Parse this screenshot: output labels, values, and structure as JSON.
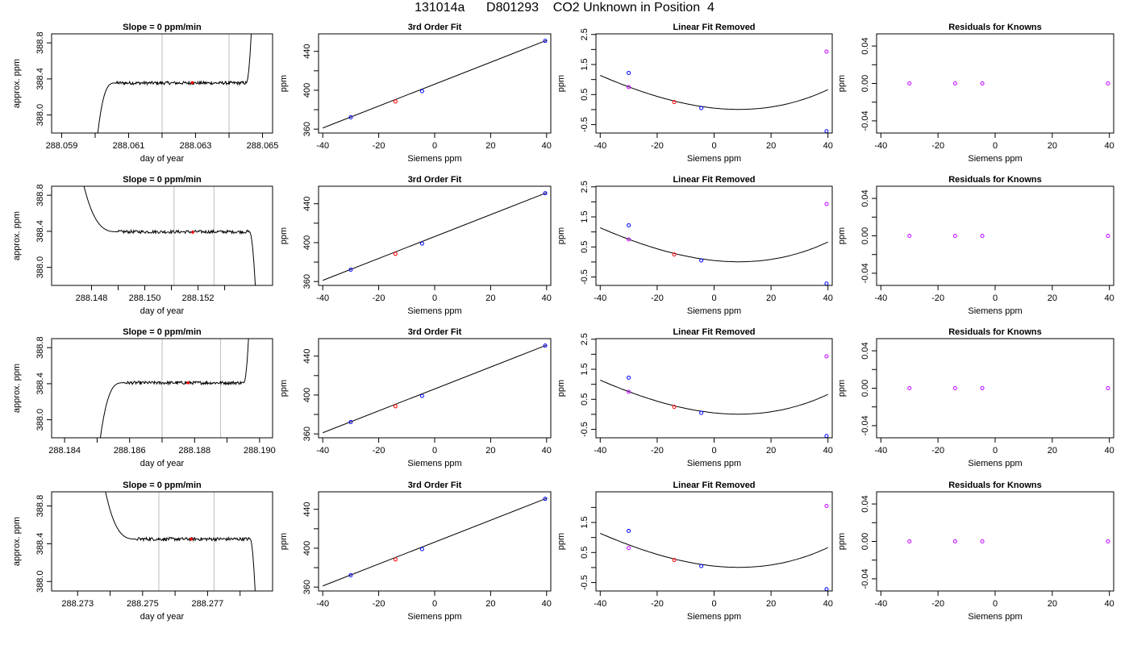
{
  "title": "131014a      D801293    CO2 Unknown in Position  4",
  "colors": {
    "trace": "#000000",
    "window": "#bebebe",
    "unknown_marker": "#ff0000",
    "known_marker": "#0000ff",
    "residual_marker": "#c000ff"
  },
  "chart_data": [
    {
      "row": 1,
      "type": "line",
      "title": "Slope =  0  ppm/min",
      "xlabel": "day of year",
      "ylabel": "approx. ppm",
      "xlim": [
        288.0587,
        288.0653
      ],
      "ylim": [
        387.8,
        388.9
      ],
      "xticks": [
        288.059,
        288.061,
        288.063,
        288.065
      ],
      "xtick_labels": [
        "288.059",
        "288.061",
        "288.063",
        "288.065"
      ],
      "xminor": [
        288.06,
        288.062,
        288.064
      ],
      "yticks": [
        388.0,
        388.4,
        388.8
      ],
      "ytick_labels": [
        "388.0",
        "388.4",
        "388.8"
      ],
      "vlines": [
        288.062,
        288.064
      ],
      "trace": {
        "start": 288.06,
        "rise_end": 288.0606,
        "plateau": 388.355,
        "end": 288.0647,
        "shape": "rise"
      },
      "mean_point": {
        "x": 288.0629,
        "y": 388.36
      }
    },
    {
      "row": 1,
      "type": "scatter",
      "title": "3rd Order Fit",
      "xlabel": "Siemens ppm",
      "ylabel": "ppm",
      "xlim": [
        -41.5,
        41.5
      ],
      "ylim": [
        356,
        458
      ],
      "xticks": [
        -40,
        -20,
        0,
        20,
        40
      ],
      "xtick_labels": [
        "-40",
        "-20",
        "0",
        "20",
        "40"
      ],
      "yticks": [
        360,
        400,
        440
      ],
      "ytick_labels": [
        "360",
        "400",
        "440"
      ],
      "yminor": [
        380,
        420
      ],
      "line": {
        "x": [
          -40,
          40
        ],
        "y": [
          361.2,
          451.3
        ]
      },
      "points": [
        {
          "x": -30,
          "y": 372.2
        },
        {
          "x": -14,
          "y": 388.4,
          "unknown": true
        },
        {
          "x": -4.5,
          "y": 399.0
        },
        {
          "x": 39.5,
          "y": 450.8
        }
      ]
    },
    {
      "row": 1,
      "type": "scatter",
      "title": "Linear Fit Removed",
      "xlabel": "Siemens ppm",
      "ylabel": "ppm",
      "xlim": [
        -41.5,
        41.5
      ],
      "ylim": [
        -0.78,
        2.52
      ],
      "xticks": [
        -40,
        -20,
        0,
        20,
        40
      ],
      "xtick_labels": [
        "-40",
        "-20",
        "0",
        "20",
        "40"
      ],
      "yticks": [
        -0.5,
        0.5,
        1.5,
        2.5
      ],
      "ytick_labels": [
        "-0.5",
        "0.5",
        "1.5",
        "2.5"
      ],
      "yminor": [
        0,
        1.0,
        2.0
      ],
      "curve": {
        "coef": [
          0.05,
          -0.0098,
          0.000532,
          2.44e-06
        ]
      },
      "known_points": [
        {
          "x": -30,
          "y": 1.22
        },
        {
          "x": -4.5,
          "y": 0.05
        },
        {
          "x": 39.5,
          "y": -0.72
        }
      ],
      "unknown_point": {
        "x": -14,
        "y": 0.25
      },
      "residual_points": [
        {
          "x": -30,
          "y": 0.75
        },
        {
          "x": 39.5,
          "y": 1.93
        }
      ]
    },
    {
      "row": 1,
      "type": "scatter",
      "title": "Residuals for Knowns",
      "xlabel": "Siemens ppm",
      "ylabel": "ppm",
      "xlim": [
        -41.5,
        41.5
      ],
      "ylim": [
        -0.053,
        0.053
      ],
      "xticks": [
        -40,
        -20,
        0,
        20,
        40
      ],
      "xtick_labels": [
        "-40",
        "-20",
        "0",
        "20",
        "40"
      ],
      "yticks": [
        -0.04,
        0.0,
        0.04
      ],
      "ytick_labels": [
        "-0.04",
        "0.00",
        "0.04"
      ],
      "yminor": [
        -0.02,
        0.02
      ],
      "points": [
        {
          "x": -30,
          "y": 0
        },
        {
          "x": -14,
          "y": 0
        },
        {
          "x": -4.5,
          "y": 0
        },
        {
          "x": 39.5,
          "y": 0
        }
      ]
    },
    {
      "row": 2,
      "type": "line",
      "title": "Slope =  0  ppm/min",
      "xlabel": "day of year",
      "ylabel": "approx. ppm",
      "xlim": [
        288.1465,
        288.1548
      ],
      "ylim": [
        387.8,
        388.9
      ],
      "xticks": [
        288.148,
        288.15,
        288.152
      ],
      "xtick_labels": [
        "288.148",
        "288.150",
        "288.152"
      ],
      "xminor": [
        288.149,
        288.151,
        288.153
      ],
      "yticks": [
        388.0,
        388.4,
        388.8
      ],
      "ytick_labels": [
        "388.0",
        "388.4",
        "388.8"
      ],
      "vlines": [
        288.1511,
        288.1526
      ],
      "trace": {
        "start": 288.1475,
        "rise_end": 288.149,
        "plateau": 388.395,
        "end": 288.1542,
        "shape": "fall"
      },
      "mean_point": {
        "x": 288.1518,
        "y": 388.39
      }
    },
    {
      "row": 2,
      "type": "scatter",
      "title": "3rd Order Fit",
      "xlabel": "Siemens ppm",
      "ylabel": "ppm",
      "xlim": [
        -41.5,
        41.5
      ],
      "ylim": [
        356,
        458
      ],
      "xticks": [
        -40,
        -20,
        0,
        20,
        40
      ],
      "xtick_labels": [
        "-40",
        "-20",
        "0",
        "20",
        "40"
      ],
      "yticks": [
        360,
        400,
        440
      ],
      "ytick_labels": [
        "360",
        "400",
        "440"
      ],
      "yminor": [
        380,
        420
      ],
      "line": {
        "x": [
          -40,
          40
        ],
        "y": [
          361.2,
          451.3
        ]
      },
      "points": [
        {
          "x": -30,
          "y": 372.2
        },
        {
          "x": -14,
          "y": 388.4,
          "unknown": true
        },
        {
          "x": -4.5,
          "y": 399.0
        },
        {
          "x": 39.5,
          "y": 450.8
        }
      ]
    },
    {
      "row": 2,
      "type": "scatter",
      "title": "Linear Fit Removed",
      "xlabel": "Siemens ppm",
      "ylabel": "ppm",
      "xlim": [
        -41.5,
        41.5
      ],
      "ylim": [
        -0.78,
        2.52
      ],
      "xticks": [
        -40,
        -20,
        0,
        20,
        40
      ],
      "xtick_labels": [
        "-40",
        "-20",
        "0",
        "20",
        "40"
      ],
      "yticks": [
        -0.5,
        0.5,
        1.5,
        2.5
      ],
      "ytick_labels": [
        "-0.5",
        "0.5",
        "1.5",
        "2.5"
      ],
      "yminor": [
        0,
        1.0,
        2.0
      ],
      "curve": {
        "coef": [
          0.05,
          -0.0098,
          0.000532,
          2.44e-06
        ]
      },
      "known_points": [
        {
          "x": -30,
          "y": 1.22
        },
        {
          "x": -4.5,
          "y": 0.05
        },
        {
          "x": 39.5,
          "y": -0.72
        }
      ],
      "unknown_point": {
        "x": -14,
        "y": 0.25
      },
      "residual_points": [
        {
          "x": -30,
          "y": 0.75
        },
        {
          "x": 39.5,
          "y": 1.93
        }
      ]
    },
    {
      "row": 2,
      "type": "scatter",
      "title": "Residuals for Knowns",
      "xlabel": "Siemens ppm",
      "ylabel": "ppm",
      "xlim": [
        -41.5,
        41.5
      ],
      "ylim": [
        -0.053,
        0.053
      ],
      "xticks": [
        -40,
        -20,
        0,
        20,
        40
      ],
      "xtick_labels": [
        "-40",
        "-20",
        "0",
        "20",
        "40"
      ],
      "yticks": [
        -0.04,
        0.0,
        0.04
      ],
      "ytick_labels": [
        "-0.04",
        "0.00",
        "0.04"
      ],
      "yminor": [
        -0.02,
        0.02
      ],
      "points": [
        {
          "x": -30,
          "y": 0
        },
        {
          "x": -14,
          "y": 0
        },
        {
          "x": -4.5,
          "y": 0
        },
        {
          "x": 39.5,
          "y": 0
        }
      ]
    },
    {
      "row": 3,
      "type": "line",
      "title": "Slope =  0  ppm/min",
      "xlabel": "day of year",
      "ylabel": "approx. ppm",
      "xlim": [
        288.1836,
        288.1904
      ],
      "ylim": [
        387.8,
        388.9
      ],
      "xticks": [
        288.184,
        288.186,
        288.188,
        288.19
      ],
      "xtick_labels": [
        "288.184",
        "288.186",
        "288.188",
        "288.190"
      ],
      "xminor": [
        288.185,
        288.187,
        288.189
      ],
      "yticks": [
        388.0,
        388.4,
        388.8
      ],
      "ytick_labels": [
        "388.0",
        "388.4",
        "388.8"
      ],
      "vlines": [
        288.187,
        288.1888
      ],
      "trace": {
        "start": 288.185,
        "rise_end": 288.1858,
        "plateau": 388.41,
        "end": 288.1897,
        "shape": "rise"
      },
      "mean_point": {
        "x": 288.1878,
        "y": 388.41
      }
    },
    {
      "row": 3,
      "type": "scatter",
      "title": "3rd Order Fit",
      "xlabel": "Siemens ppm",
      "ylabel": "ppm",
      "xlim": [
        -41.5,
        41.5
      ],
      "ylim": [
        356,
        458
      ],
      "xticks": [
        -40,
        -20,
        0,
        20,
        40
      ],
      "xtick_labels": [
        "-40",
        "-20",
        "0",
        "20",
        "40"
      ],
      "yticks": [
        360,
        400,
        440
      ],
      "ytick_labels": [
        "360",
        "400",
        "440"
      ],
      "yminor": [
        380,
        420
      ],
      "line": {
        "x": [
          -40,
          40
        ],
        "y": [
          361.2,
          451.3
        ]
      },
      "points": [
        {
          "x": -30,
          "y": 372.2
        },
        {
          "x": -14,
          "y": 388.4,
          "unknown": true
        },
        {
          "x": -4.5,
          "y": 399.0
        },
        {
          "x": 39.5,
          "y": 450.8
        }
      ]
    },
    {
      "row": 3,
      "type": "scatter",
      "title": "Linear Fit Removed",
      "xlabel": "Siemens ppm",
      "ylabel": "ppm",
      "xlim": [
        -41.5,
        41.5
      ],
      "ylim": [
        -0.78,
        2.52
      ],
      "xticks": [
        -40,
        -20,
        0,
        20,
        40
      ],
      "xtick_labels": [
        "-40",
        "-20",
        "0",
        "20",
        "40"
      ],
      "yticks": [
        -0.5,
        0.5,
        1.5,
        2.5
      ],
      "ytick_labels": [
        "-0.5",
        "0.5",
        "1.5",
        "2.5"
      ],
      "yminor": [
        0,
        1.0,
        2.0
      ],
      "curve": {
        "coef": [
          0.05,
          -0.0098,
          0.000532,
          2.44e-06
        ]
      },
      "known_points": [
        {
          "x": -30,
          "y": 1.22
        },
        {
          "x": -4.5,
          "y": 0.05
        },
        {
          "x": 39.5,
          "y": -0.72
        }
      ],
      "unknown_point": {
        "x": -14,
        "y": 0.25
      },
      "residual_points": [
        {
          "x": -30,
          "y": 0.75
        },
        {
          "x": 39.5,
          "y": 1.93
        }
      ]
    },
    {
      "row": 3,
      "type": "scatter",
      "title": "Residuals for Knowns",
      "xlabel": "Siemens ppm",
      "ylabel": "ppm",
      "xlim": [
        -41.5,
        41.5
      ],
      "ylim": [
        -0.053,
        0.053
      ],
      "xticks": [
        -40,
        -20,
        0,
        20,
        40
      ],
      "xtick_labels": [
        "-40",
        "-20",
        "0",
        "20",
        "40"
      ],
      "yticks": [
        -0.04,
        0.0,
        0.04
      ],
      "ytick_labels": [
        "-0.04",
        "0.00",
        "0.04"
      ],
      "yminor": [
        -0.02,
        0.02
      ],
      "points": [
        {
          "x": -30,
          "y": 0
        },
        {
          "x": -14,
          "y": 0
        },
        {
          "x": -4.5,
          "y": 0
        },
        {
          "x": 39.5,
          "y": 0
        }
      ]
    },
    {
      "row": 4,
      "type": "line",
      "title": "Slope =  0  ppm/min",
      "xlabel": "day of year",
      "ylabel": "approx. ppm",
      "xlim": [
        288.2722,
        288.279
      ],
      "ylim": [
        387.9,
        388.95
      ],
      "xticks": [
        288.273,
        288.275,
        288.277
      ],
      "xtick_labels": [
        "288.273",
        "288.275",
        "288.277"
      ],
      "xminor": [
        288.274,
        288.276,
        288.278
      ],
      "yticks": [
        388.0,
        388.4,
        388.8
      ],
      "ytick_labels": [
        "388.0",
        "388.4",
        "388.8"
      ],
      "vlines": [
        288.2755,
        288.2772
      ],
      "trace": {
        "start": 288.2737,
        "rise_end": 288.2748,
        "plateau": 388.45,
        "end": 288.2785,
        "shape": "fall"
      },
      "mean_point": {
        "x": 288.2765,
        "y": 388.45
      }
    },
    {
      "row": 4,
      "type": "scatter",
      "title": "3rd Order Fit",
      "xlabel": "Siemens ppm",
      "ylabel": "ppm",
      "xlim": [
        -41.5,
        41.5
      ],
      "ylim": [
        356,
        458
      ],
      "xticks": [
        -40,
        -20,
        0,
        20,
        40
      ],
      "xtick_labels": [
        "-40",
        "-20",
        "0",
        "20",
        "40"
      ],
      "yticks": [
        360,
        400,
        440
      ],
      "ytick_labels": [
        "360",
        "400",
        "440"
      ],
      "yminor": [
        380,
        420
      ],
      "line": {
        "x": [
          -40,
          40
        ],
        "y": [
          361.2,
          451.3
        ]
      },
      "points": [
        {
          "x": -30,
          "y": 372.2
        },
        {
          "x": -14,
          "y": 388.4,
          "unknown": true
        },
        {
          "x": -4.5,
          "y": 399.0
        },
        {
          "x": 39.5,
          "y": 450.8
        }
      ]
    },
    {
      "row": 4,
      "type": "scatter",
      "title": "Linear Fit Removed",
      "xlabel": "Siemens ppm",
      "ylabel": "ppm",
      "xlim": [
        -41.5,
        41.5
      ],
      "ylim": [
        -0.78,
        2.52
      ],
      "xticks": [
        -40,
        -20,
        0,
        20,
        40
      ],
      "xtick_labels": [
        "-40",
        "-20",
        "0",
        "20",
        "40"
      ],
      "yticks": [
        -0.5,
        0.5,
        1.5
      ],
      "ytick_labels": [
        "-0.5",
        "0.5",
        "1.5"
      ],
      "yminor": [
        0,
        1.0,
        2.0
      ],
      "curve": {
        "coef": [
          0.05,
          -0.0098,
          0.000532,
          2.44e-06
        ]
      },
      "known_points": [
        {
          "x": -30,
          "y": 1.22
        },
        {
          "x": -4.5,
          "y": 0.05
        },
        {
          "x": 39.5,
          "y": -0.72
        }
      ],
      "unknown_point": {
        "x": -14,
        "y": 0.25
      },
      "residual_points": [
        {
          "x": -30,
          "y": 0.65
        },
        {
          "x": 39.5,
          "y": 2.05
        }
      ]
    },
    {
      "row": 4,
      "type": "scatter",
      "title": "Residuals for Knowns",
      "xlabel": "Siemens ppm",
      "ylabel": "ppm",
      "xlim": [
        -41.5,
        41.5
      ],
      "ylim": [
        -0.053,
        0.053
      ],
      "xticks": [
        -40,
        -20,
        0,
        20,
        40
      ],
      "xtick_labels": [
        "-40",
        "-20",
        "0",
        "20",
        "40"
      ],
      "yticks": [
        -0.04,
        0.0,
        0.04
      ],
      "ytick_labels": [
        "-0.04",
        "0.00",
        "0.04"
      ],
      "yminor": [
        -0.02,
        0.02
      ],
      "points": [
        {
          "x": -30,
          "y": 0
        },
        {
          "x": -14,
          "y": 0
        },
        {
          "x": -4.5,
          "y": 0
        },
        {
          "x": 39.5,
          "y": 0
        }
      ]
    }
  ]
}
